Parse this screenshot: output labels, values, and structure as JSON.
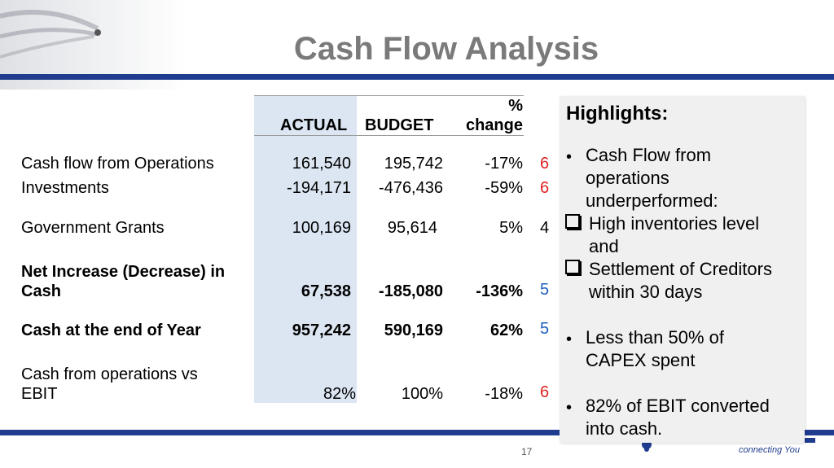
{
  "title": "Cash Flow Analysis",
  "table": {
    "headers": {
      "actual": "ACTUAL",
      "budget": "BUDGET",
      "change_line1": "%",
      "change_line2": "change"
    },
    "rows": [
      {
        "label": "Cash flow from Operations",
        "actual": "161,540",
        "budget": "195,742",
        "change": "-17%",
        "marker": "6"
      },
      {
        "label": "Investments",
        "actual": "-194,171",
        "budget": "-476,436",
        "change": "-59%",
        "marker": "6"
      },
      {
        "label": "Government Grants",
        "actual": "100,169",
        "budget": "95,614",
        "change": "5%",
        "marker": "4"
      },
      {
        "label_line1": "Net Increase (Decrease) in",
        "label_line2": "Cash",
        "actual": "67,538",
        "budget": "-185,080",
        "change": "-136%",
        "marker": "5"
      },
      {
        "label": "Cash at the end of Year",
        "actual": "957,242",
        "budget": "590,169",
        "change": "62%",
        "marker": "5"
      },
      {
        "label_line1": "Cash from operations vs",
        "label_line2": "EBIT",
        "actual": "82%",
        "budget": "100%",
        "change": "-18%",
        "marker": "6"
      }
    ]
  },
  "highlights": {
    "title": "Highlights:",
    "b1": [
      "Cash Flow from",
      "operations",
      "underperformed:"
    ],
    "s1": [
      "High inventories level",
      "and"
    ],
    "s2": [
      "Settlement of Creditors",
      "within 30 days"
    ],
    "b2": [
      "Less than 50% of",
      "CAPEX spent"
    ],
    "b3": [
      "82% of EBIT converted",
      "into cash."
    ]
  },
  "logo_tagline": "connecting You",
  "page_number": "17",
  "colors": {
    "bar": "#1f3c8f",
    "title": "#7a7a7a",
    "actual_column": "#dce6f2",
    "marker_red": "#e02020",
    "marker_blue": "#2060c0"
  }
}
